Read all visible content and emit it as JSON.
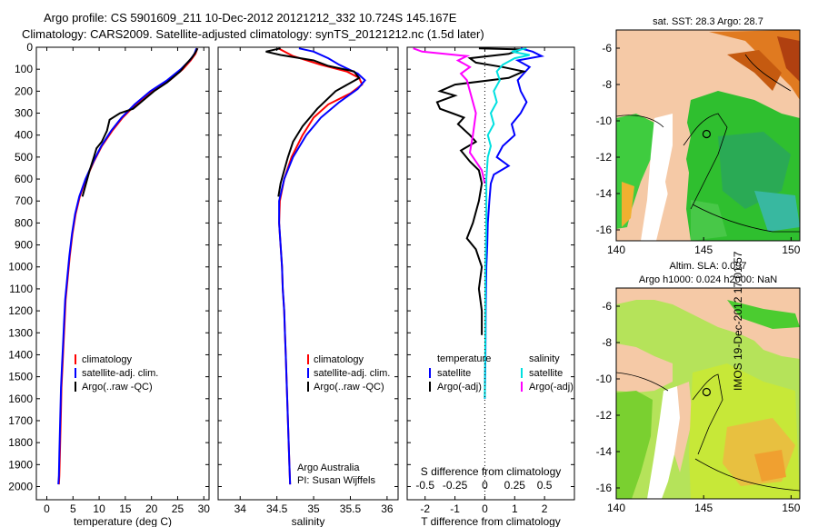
{
  "header": {
    "line1": "Argo profile: CS 5901609_211 10-Dec-2012 20121212_332 10.724S 145.167E",
    "line2": "Climatology: CARS2009. Satellite-adjusted climatology: synTS_20121212.nc (1.5d later)"
  },
  "side_stamp": "IMOS 19-Dec-2012 17:01:57",
  "colors": {
    "climatology": "#ff0000",
    "satellite": "#0000ff",
    "argo": "#000000",
    "sat_salinity": "#00e0e0",
    "argo_salinity": "#ff00ff",
    "land": "#f5c9a6",
    "ocean_green": "#2ec22e"
  },
  "chart_data": [
    {
      "type": "line",
      "id": "temperature",
      "xlabel": "temperature (deg C)",
      "ylabel": "",
      "xlim": [
        -2,
        31
      ],
      "ylim": [
        2060,
        0
      ],
      "xticks": [
        0,
        5,
        10,
        15,
        20,
        25,
        30
      ],
      "yticks": [
        0,
        100,
        200,
        300,
        400,
        500,
        600,
        700,
        800,
        900,
        1000,
        1100,
        1200,
        1300,
        1400,
        1500,
        1600,
        1700,
        1800,
        1900,
        2000
      ],
      "legend": [
        "climatology",
        "satellite-adj. clim.",
        "Argo(..raw -QC)"
      ],
      "series": [
        {
          "name": "climatology",
          "key": "climatology",
          "points": [
            [
              28.8,
              5
            ],
            [
              28.4,
              30
            ],
            [
              27.5,
              60
            ],
            [
              26.0,
              100
            ],
            [
              23.5,
              150
            ],
            [
              20.0,
              200
            ],
            [
              17.0,
              260
            ],
            [
              14.5,
              320
            ],
            [
              12.5,
              380
            ],
            [
              10.5,
              450
            ],
            [
              9.0,
              520
            ],
            [
              7.5,
              600
            ],
            [
              6.3,
              680
            ],
            [
              5.5,
              760
            ],
            [
              4.9,
              850
            ],
            [
              4.4,
              950
            ],
            [
              4.0,
              1050
            ],
            [
              3.6,
              1150
            ],
            [
              3.4,
              1250
            ],
            [
              3.2,
              1350
            ],
            [
              3.0,
              1450
            ],
            [
              2.8,
              1550
            ],
            [
              2.7,
              1650
            ],
            [
              2.6,
              1750
            ],
            [
              2.5,
              1850
            ],
            [
              2.4,
              1950
            ],
            [
              2.3,
              1990
            ]
          ]
        },
        {
          "name": "satellite-adj. clim.",
          "key": "satellite",
          "points": [
            [
              28.6,
              5
            ],
            [
              28.2,
              30
            ],
            [
              27.3,
              60
            ],
            [
              25.6,
              100
            ],
            [
              23.0,
              150
            ],
            [
              19.8,
              200
            ],
            [
              16.8,
              260
            ],
            [
              14.3,
              320
            ],
            [
              12.3,
              380
            ],
            [
              10.4,
              450
            ],
            [
              8.9,
              520
            ],
            [
              7.4,
              600
            ],
            [
              6.2,
              680
            ],
            [
              5.4,
              760
            ],
            [
              4.8,
              850
            ],
            [
              4.3,
              950
            ],
            [
              3.9,
              1050
            ],
            [
              3.5,
              1150
            ],
            [
              3.3,
              1250
            ],
            [
              3.1,
              1350
            ],
            [
              2.9,
              1450
            ],
            [
              2.7,
              1550
            ],
            [
              2.6,
              1650
            ],
            [
              2.5,
              1750
            ],
            [
              2.4,
              1850
            ],
            [
              2.3,
              1950
            ],
            [
              2.2,
              1990
            ]
          ]
        },
        {
          "name": "Argo(..raw -QC)",
          "key": "argo",
          "points": [
            [
              28.8,
              5
            ],
            [
              28.5,
              20
            ],
            [
              27.8,
              45
            ],
            [
              26.5,
              80
            ],
            [
              25.5,
              110
            ],
            [
              23.0,
              160
            ],
            [
              20.5,
              200
            ],
            [
              18.0,
              250
            ],
            [
              16.5,
              280
            ],
            [
              14.0,
              300
            ],
            [
              12.0,
              330
            ],
            [
              11.5,
              380
            ],
            [
              10.5,
              430
            ],
            [
              9.5,
              460
            ],
            [
              9.0,
              500
            ],
            [
              8.2,
              560
            ],
            [
              7.5,
              620
            ],
            [
              6.8,
              680
            ]
          ]
        }
      ]
    },
    {
      "type": "line",
      "id": "salinity",
      "xlabel": "salinity",
      "ylabel": "",
      "xlim": [
        33.7,
        36.15
      ],
      "ylim": [
        2060,
        0
      ],
      "xticks": [
        34,
        34.5,
        35,
        35.5,
        36
      ],
      "legend": [
        "climatology",
        "satellite-adj. clim.",
        "Argo(..raw -QC)"
      ],
      "annotation": [
        "Argo Australia",
        "PI: Susan Wijffels"
      ],
      "series": [
        {
          "name": "climatology",
          "key": "climatology",
          "points": [
            [
              34.52,
              5
            ],
            [
              34.72,
              40
            ],
            [
              35.1,
              80
            ],
            [
              35.45,
              110
            ],
            [
              35.62,
              140
            ],
            [
              35.66,
              170
            ],
            [
              35.5,
              210
            ],
            [
              35.2,
              260
            ],
            [
              35.0,
              320
            ],
            [
              34.85,
              400
            ],
            [
              34.7,
              500
            ],
            [
              34.6,
              600
            ],
            [
              34.54,
              700
            ],
            [
              34.53,
              800
            ],
            [
              34.55,
              900
            ],
            [
              34.57,
              1000
            ],
            [
              34.58,
              1100
            ],
            [
              34.6,
              1200
            ],
            [
              34.61,
              1300
            ],
            [
              34.62,
              1400
            ],
            [
              34.63,
              1500
            ],
            [
              34.64,
              1600
            ],
            [
              34.65,
              1700
            ],
            [
              34.66,
              1800
            ],
            [
              34.67,
              1900
            ],
            [
              34.68,
              1990
            ]
          ]
        },
        {
          "name": "satellite-adj. clim.",
          "key": "satellite",
          "points": [
            [
              34.8,
              5
            ],
            [
              35.0,
              20
            ],
            [
              35.2,
              50
            ],
            [
              35.35,
              80
            ],
            [
              35.6,
              120
            ],
            [
              35.7,
              150
            ],
            [
              35.6,
              190
            ],
            [
              35.35,
              250
            ],
            [
              35.1,
              320
            ],
            [
              34.9,
              400
            ],
            [
              34.72,
              500
            ],
            [
              34.6,
              600
            ],
            [
              34.53,
              700
            ],
            [
              34.53,
              800
            ],
            [
              34.55,
              900
            ],
            [
              34.57,
              1000
            ],
            [
              34.58,
              1100
            ],
            [
              34.6,
              1200
            ],
            [
              34.61,
              1300
            ],
            [
              34.62,
              1400
            ],
            [
              34.63,
              1500
            ],
            [
              34.64,
              1600
            ],
            [
              34.65,
              1700
            ],
            [
              34.66,
              1800
            ],
            [
              34.67,
              1900
            ],
            [
              34.68,
              1990
            ]
          ]
        },
        {
          "name": "Argo(..raw -QC)",
          "key": "argo",
          "points": [
            [
              34.55,
              5
            ],
            [
              34.35,
              20
            ],
            [
              34.55,
              35
            ],
            [
              35.0,
              60
            ],
            [
              35.2,
              85
            ],
            [
              35.55,
              110
            ],
            [
              35.62,
              140
            ],
            [
              35.3,
              200
            ],
            [
              35.05,
              280
            ],
            [
              34.95,
              320
            ],
            [
              34.85,
              360
            ],
            [
              34.72,
              430
            ],
            [
              34.65,
              500
            ],
            [
              34.6,
              560
            ],
            [
              34.55,
              620
            ],
            [
              34.52,
              680
            ]
          ]
        }
      ]
    },
    {
      "type": "line",
      "id": "differences",
      "xlabel": "T difference from climatology",
      "ylabel": "",
      "title_lower": "S difference from climatology",
      "xlim": [
        -2.6,
        3.0
      ],
      "ylim": [
        2060,
        0
      ],
      "xticks": [
        -2,
        -1,
        0,
        1,
        2
      ],
      "sticks_labels": [
        "-0.5",
        "-0.25",
        "0",
        "0.25",
        "0.5"
      ],
      "sticks_values_x": [
        -2,
        -1,
        0,
        1,
        2
      ],
      "legend_left_title": "temperature",
      "legend_right_title": "salinity",
      "legend": [
        "satellite",
        "Argo(-adj)",
        "satellite",
        "Argo(-adj)"
      ],
      "series": [
        {
          "name": "satellite",
          "key": "satellite",
          "points": [
            [
              1.2,
              5
            ],
            [
              1.6,
              20
            ],
            [
              1.9,
              40
            ],
            [
              1.1,
              60
            ],
            [
              1.5,
              90
            ],
            [
              1.3,
              120
            ],
            [
              1.1,
              150
            ],
            [
              1.2,
              200
            ],
            [
              1.4,
              250
            ],
            [
              1.2,
              300
            ],
            [
              0.9,
              350
            ],
            [
              1.0,
              400
            ],
            [
              0.6,
              450
            ],
            [
              0.4,
              500
            ],
            [
              0.8,
              540
            ],
            [
              0.3,
              580
            ],
            [
              0.2,
              620
            ],
            [
              0.15,
              700
            ],
            [
              0.1,
              800
            ],
            [
              0.08,
              900
            ],
            [
              0.05,
              1000
            ],
            [
              0.03,
              1200
            ],
            [
              0.02,
              1400
            ],
            [
              0.0,
              1600
            ]
          ]
        },
        {
          "name": "Argo(-adj)",
          "key": "argo",
          "points": [
            [
              -0.2,
              5
            ],
            [
              1.2,
              10
            ],
            [
              0.8,
              30
            ],
            [
              -0.5,
              50
            ],
            [
              -0.3,
              70
            ],
            [
              0.6,
              90
            ],
            [
              1.3,
              110
            ],
            [
              0.8,
              140
            ],
            [
              -1.0,
              170
            ],
            [
              -1.5,
              200
            ],
            [
              -1.0,
              220
            ],
            [
              -1.6,
              250
            ],
            [
              -1.5,
              280
            ],
            [
              -1.1,
              300
            ],
            [
              -0.7,
              320
            ],
            [
              -0.9,
              350
            ],
            [
              -0.5,
              400
            ],
            [
              -0.3,
              430
            ],
            [
              -0.8,
              470
            ],
            [
              -0.5,
              520
            ],
            [
              -0.2,
              560
            ],
            [
              -0.1,
              620
            ],
            [
              -0.2,
              700
            ],
            [
              -0.4,
              800
            ],
            [
              -0.6,
              870
            ],
            [
              -0.3,
              920
            ],
            [
              -0.1,
              1000
            ],
            [
              -0.2,
              1100
            ],
            [
              -0.1,
              1200
            ],
            [
              -0.1,
              1310
            ]
          ]
        },
        {
          "name": "satellite",
          "key": "sat_salinity",
          "points": [
            [
              1.4,
              5
            ],
            [
              0.9,
              20
            ],
            [
              1.5,
              35
            ],
            [
              1.0,
              50
            ],
            [
              0.6,
              80
            ],
            [
              0.4,
              110
            ],
            [
              0.5,
              150
            ],
            [
              0.3,
              200
            ],
            [
              0.4,
              250
            ],
            [
              0.2,
              300
            ],
            [
              0.3,
              350
            ],
            [
              0.1,
              400
            ],
            [
              0.2,
              450
            ],
            [
              0.1,
              500
            ],
            [
              0.05,
              600
            ],
            [
              0.05,
              800
            ],
            [
              0.02,
              1000
            ],
            [
              0.02,
              1300
            ],
            [
              0.0,
              1600
            ]
          ]
        },
        {
          "name": "Argo(-adj)",
          "key": "argo_salinity",
          "points": [
            [
              -2.4,
              5
            ],
            [
              -2.1,
              20
            ],
            [
              -0.6,
              40
            ],
            [
              -0.9,
              60
            ],
            [
              -0.5,
              90
            ],
            [
              -0.8,
              120
            ],
            [
              -0.6,
              150
            ],
            [
              -0.5,
              200
            ],
            [
              -0.3,
              300
            ],
            [
              -0.4,
              400
            ],
            [
              -0.5,
              480
            ],
            [
              -0.3,
              520
            ],
            [
              -0.1,
              560
            ],
            [
              0.0,
              620
            ]
          ]
        }
      ]
    },
    {
      "type": "heatmap",
      "id": "sst_map",
      "title": "sat. SST: 28.3 Argo: 28.7",
      "xlim": [
        140,
        150.5
      ],
      "ylim": [
        -16.6,
        -5
      ],
      "xticks": [
        140,
        145,
        150
      ],
      "yticks": [
        -6,
        -8,
        -10,
        -12,
        -14,
        -16
      ],
      "marker": [
        145.167,
        -10.724
      ]
    },
    {
      "type": "heatmap",
      "id": "sla_map",
      "title_line1": "Altim. SLA: 0.097",
      "title_line2": "Argo h1000: 0.024 h2000: NaN",
      "xlim": [
        140,
        150.5
      ],
      "ylim": [
        -16.6,
        -5
      ],
      "xticks": [
        140,
        145,
        150
      ],
      "yticks": [
        -6,
        -8,
        -10,
        -12,
        -14,
        -16
      ],
      "marker": [
        145.167,
        -10.724
      ]
    }
  ]
}
